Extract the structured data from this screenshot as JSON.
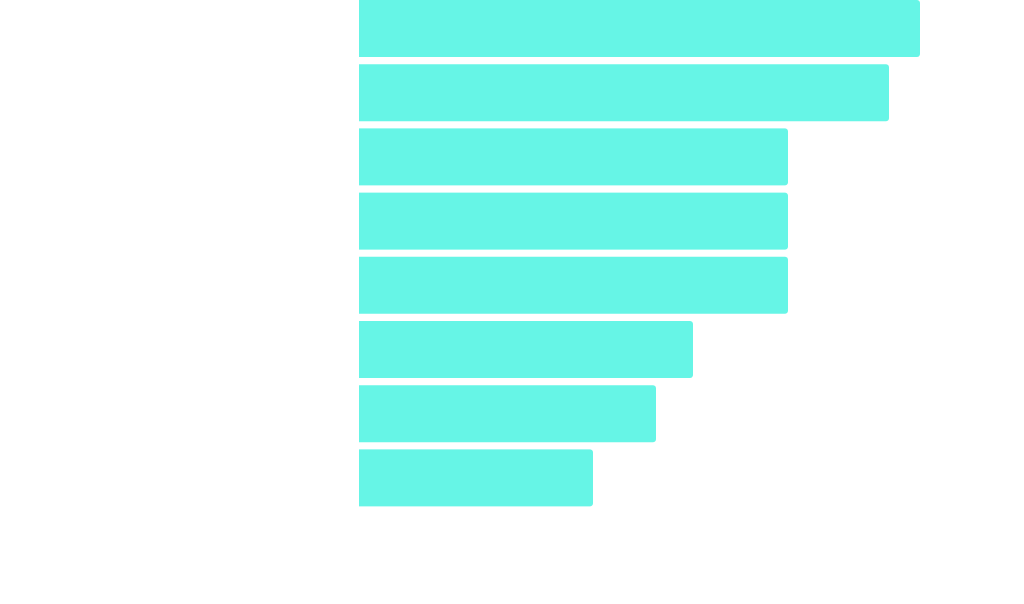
{
  "chart_data": {
    "type": "hbar",
    "categories": [
      null,
      null,
      null,
      null,
      null,
      null,
      null,
      null
    ],
    "values": [
      561,
      530,
      429,
      429,
      429,
      334,
      297,
      234
    ],
    "color": "#66f5e6",
    "xlim": [
      0,
      561
    ]
  }
}
